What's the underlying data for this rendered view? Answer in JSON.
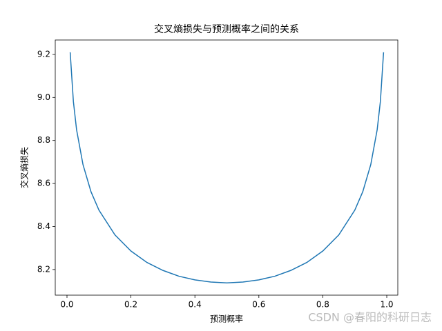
{
  "chart_data": {
    "type": "line",
    "title": "交叉熵损失与预测概率之间的关系",
    "xlabel": "预测概率",
    "ylabel": "交叉熵损失",
    "watermark": "CSDN @春阳的科研日志",
    "x": [
      0.01,
      0.02,
      0.03,
      0.05,
      0.075,
      0.1,
      0.15,
      0.2,
      0.25,
      0.3,
      0.35,
      0.4,
      0.45,
      0.5,
      0.55,
      0.6,
      0.65,
      0.7,
      0.75,
      0.8,
      0.85,
      0.9,
      0.925,
      0.95,
      0.97,
      0.98,
      0.99
    ],
    "series": [
      {
        "name": "交叉熵损失",
        "color": "#1f77b4",
        "values": [
          9.21,
          8.981,
          8.85,
          8.688,
          8.562,
          8.476,
          8.361,
          8.286,
          8.233,
          8.196,
          8.169,
          8.152,
          8.142,
          8.138,
          8.142,
          8.152,
          8.169,
          8.196,
          8.233,
          8.286,
          8.361,
          8.476,
          8.562,
          8.688,
          8.85,
          8.981,
          9.21
        ]
      }
    ],
    "xlim": [
      -0.0367,
      1.0345
    ],
    "ylim": [
      8.081,
      9.267
    ],
    "xticks": [
      {
        "value": 0,
        "label": "0.0"
      },
      0.2,
      0.4,
      0.6,
      0.8,
      {
        "value": 1,
        "label": "1.0"
      }
    ],
    "yticks": [
      8.2,
      8.4,
      8.6,
      8.8,
      {
        "value": 9,
        "label": "9.0"
      },
      9.2
    ],
    "grid": false
  }
}
